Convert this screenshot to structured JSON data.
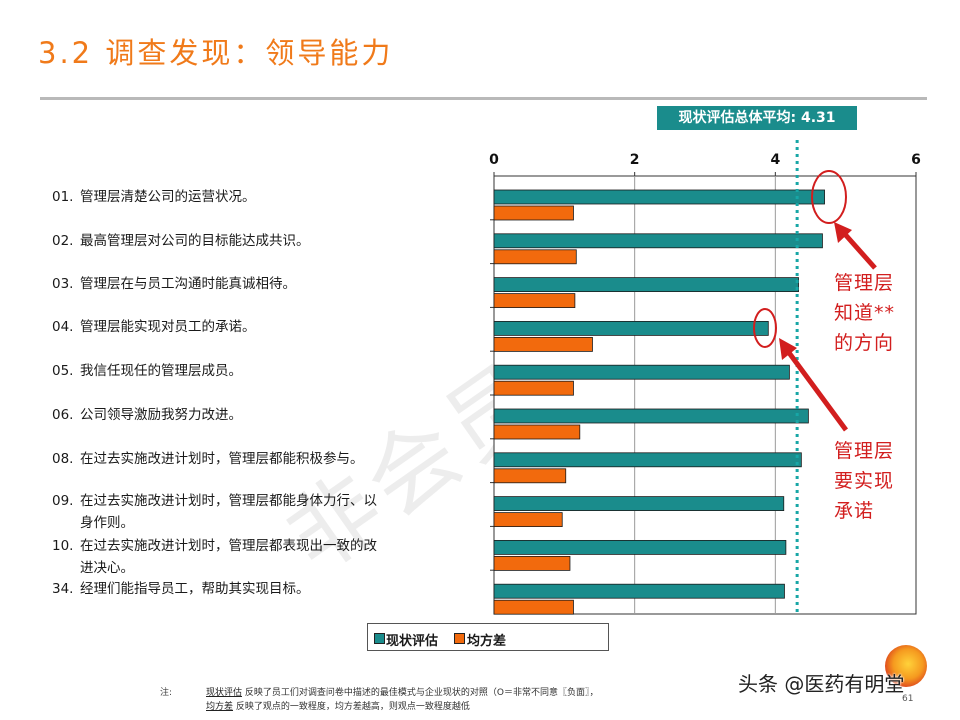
{
  "title": "3.2 调查发现：领导能力",
  "avg_label": "现状评估总体平均: 4.31",
  "questions": [
    {
      "num": "01.",
      "text": "管理层清楚公司的运营状况。"
    },
    {
      "num": "02.",
      "text": "最高管理层对公司的目标能达成共识。"
    },
    {
      "num": "03.",
      "text": "管理层在与员工沟通时能真诚相待。"
    },
    {
      "num": "04.",
      "text": "管理层能实现对员工的承诺。"
    },
    {
      "num": "05.",
      "text": "我信任现任的管理层成员。"
    },
    {
      "num": "06.",
      "text": "公司领导激励我努力改进。"
    },
    {
      "num": "08.",
      "text": "在过去实施改进计划时，管理层都能积极参与。"
    },
    {
      "num": "09.",
      "text": "在过去实施改进计划时，管理层都能身体力行、以",
      "text2": "身作则。"
    },
    {
      "num": "10.",
      "text": "在过去实施改进计划时，管理层都表现出一致的改",
      "text2": "进决心。"
    },
    {
      "num": "34.",
      "text": "经理们能指导员工，帮助其实现目标。"
    }
  ],
  "chart_data": {
    "type": "bar",
    "orientation": "horizontal",
    "categories": [
      "01.",
      "02.",
      "03.",
      "04.",
      "05.",
      "06.",
      "08.",
      "09.",
      "10.",
      "34."
    ],
    "series": [
      {
        "name": "现状评估",
        "color": "#1a8c8c",
        "values": [
          4.7,
          4.67,
          4.33,
          3.9,
          4.2,
          4.47,
          4.37,
          4.12,
          4.15,
          4.13
        ]
      },
      {
        "name": "均方差",
        "color": "#f26a0d",
        "values": [
          1.13,
          1.17,
          1.15,
          1.4,
          1.13,
          1.22,
          1.02,
          0.97,
          1.08,
          1.13
        ]
      }
    ],
    "xlim": [
      0,
      6
    ],
    "xticks": [
      "0",
      "2",
      "4",
      "6"
    ],
    "reference_line": {
      "value": 4.31
    },
    "grid": true
  },
  "annotations": {
    "upper": [
      "管理层",
      "知道**",
      "的方向"
    ],
    "lower": [
      "管理层",
      "要实现",
      "承诺"
    ]
  },
  "footnote": {
    "label": "注:",
    "line1_term": "现状评估",
    "line1": "反映了员工们对调查问卷中描述的最佳模式与企业现状的对照（O＝非常不同意〖负面〗，",
    "line2_term": "均方差",
    "line2": "反映了观点的一致程度，均方差越高，则观点一致程度越低"
  },
  "watermark": "头条 @医药有明堂",
  "page_number": "61",
  "background_stamp": "非会员水印",
  "colors": {
    "accent": "#f07a1a",
    "teal": "#1a8c8c",
    "orange": "#f26a0d",
    "red": "#d21e1e"
  }
}
